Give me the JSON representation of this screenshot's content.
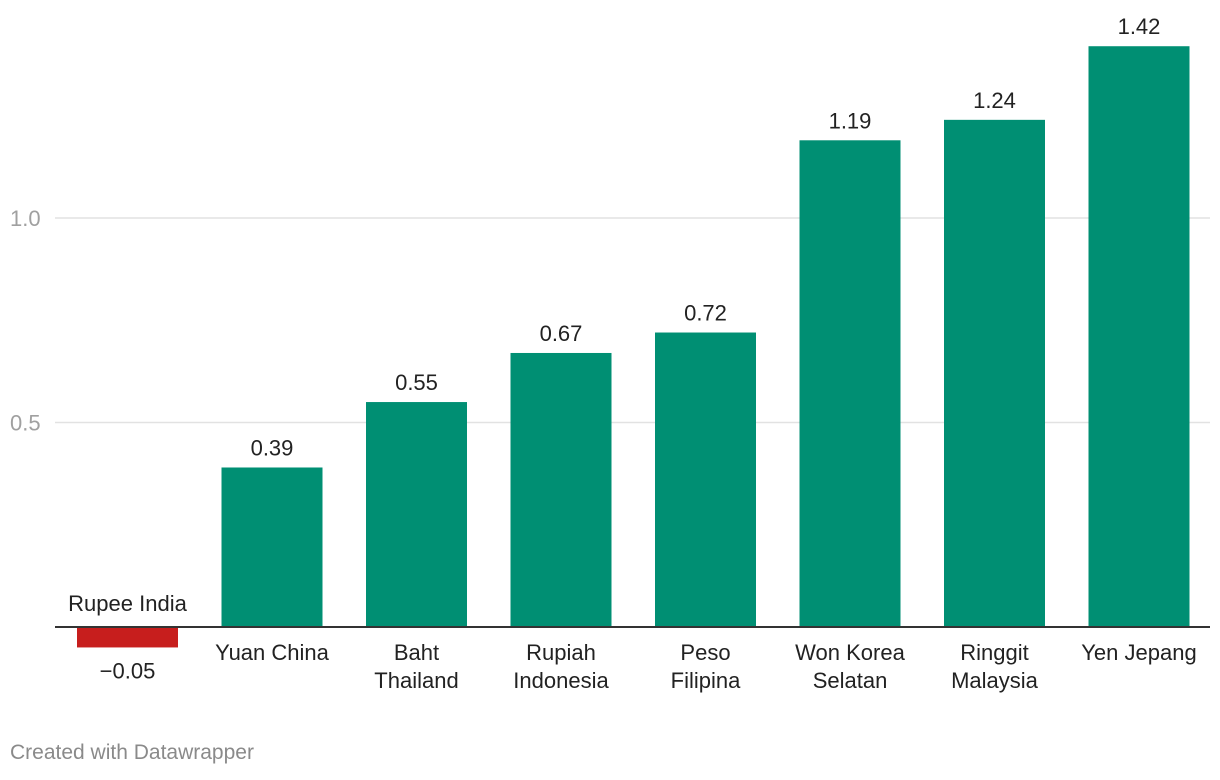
{
  "chart_data": {
    "type": "bar",
    "categories": [
      [
        "Rupee India"
      ],
      [
        "Yuan China"
      ],
      [
        "Baht",
        "Thailand"
      ],
      [
        "Rupiah",
        "Indonesia"
      ],
      [
        "Peso",
        "Filipina"
      ],
      [
        "Won Korea",
        "Selatan"
      ],
      [
        "Ringgit",
        "Malaysia"
      ],
      [
        "Yen Jepang"
      ]
    ],
    "values": [
      -0.05,
      0.39,
      0.55,
      0.67,
      0.72,
      1.19,
      1.24,
      1.42
    ],
    "value_labels": [
      "−0.05",
      "0.39",
      "0.55",
      "0.67",
      "0.72",
      "1.19",
      "1.24",
      "1.42"
    ],
    "y_ticks": [
      0.5,
      1.0
    ],
    "y_tick_labels": [
      "0.5",
      "1.0"
    ],
    "ylim": [
      -0.05,
      1.42
    ],
    "grid": true,
    "colors": {
      "positive": "#008f73",
      "negative": "#c71e1d",
      "axis": "#333333",
      "grid": "#e2e2e2",
      "tick_text": "#a0a0a0"
    }
  },
  "footer": {
    "credit": "Created with Datawrapper"
  }
}
